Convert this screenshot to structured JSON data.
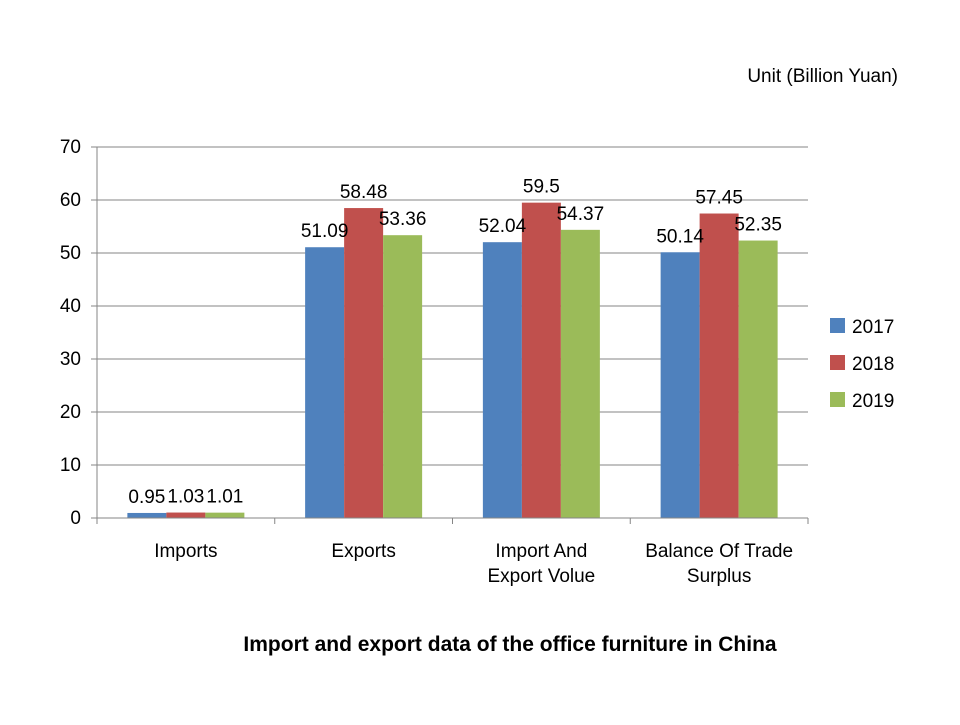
{
  "chart_data": {
    "type": "bar",
    "title": "Import and export data of the office furniture in China",
    "unit_label": "Unit (Billion Yuan)",
    "categories": [
      [
        "Imports"
      ],
      [
        "Exports"
      ],
      [
        "Import And",
        "Export Volue"
      ],
      [
        "Balance Of Trade",
        "Surplus"
      ]
    ],
    "series": [
      {
        "name": "2017",
        "color": "#4F81BD",
        "values": [
          0.95,
          51.09,
          52.04,
          50.14
        ]
      },
      {
        "name": "2018",
        "color": "#C0504D",
        "values": [
          1.03,
          58.48,
          59.5,
          57.45
        ]
      },
      {
        "name": "2019",
        "color": "#9BBB59",
        "values": [
          1.01,
          53.36,
          54.37,
          52.35
        ]
      }
    ],
    "value_labels": [
      [
        "0.95",
        "51.09",
        "52.04",
        "50.14"
      ],
      [
        "1.03",
        "58.48",
        "59.5",
        "57.45"
      ],
      [
        "1.01",
        "53.36",
        "54.37",
        "52.35"
      ]
    ],
    "ylim": [
      0,
      70
    ],
    "y_ticks": [
      0,
      10,
      20,
      30,
      40,
      50,
      60,
      70
    ],
    "grid": true,
    "legend_position": "right"
  }
}
